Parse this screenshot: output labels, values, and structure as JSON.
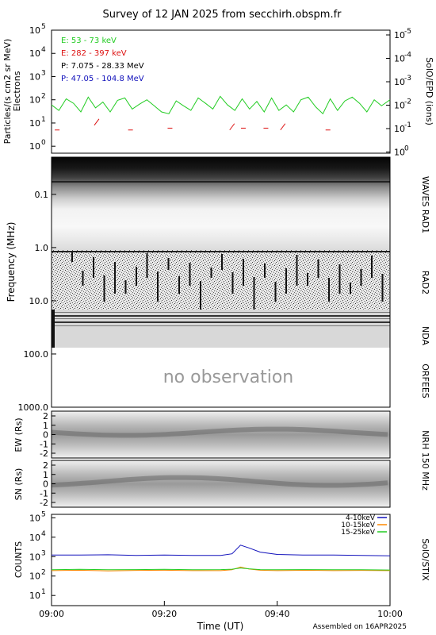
{
  "title": "Survey of 12 JAN 2025 from secchirh.obspm.fr",
  "footer": "Assembled on 16APR2025",
  "xaxis": {
    "label": "Time (UT)",
    "ticks": [
      "09:00",
      "09:20",
      "09:40",
      "10:00"
    ],
    "range": [
      "09:00",
      "10:00"
    ]
  },
  "colors": {
    "green": "#22cc22",
    "red": "#dd1111",
    "black": "#000000",
    "blue": "#1111bb",
    "orange": "#ff8800"
  },
  "panels": {
    "particles": {
      "ylabel": "Particles/(s cm2 sr MeV)",
      "ylabel2": "Electrons",
      "right_label": "SolO/EPD (ions)",
      "yticks_left": [
        "10",
        "10",
        "10",
        "10",
        "10",
        "10"
      ],
      "yexp_left": [
        "0",
        "1",
        "2",
        "3",
        "4",
        "5"
      ],
      "yticks_right": [
        "10",
        "10",
        "10",
        "10",
        "10",
        "10",
        "10"
      ],
      "yexp_right": [
        "-5",
        "-4",
        "-3",
        "-2",
        "-1",
        "0"
      ],
      "legend": [
        {
          "text": "E: 53 - 73 keV",
          "color": "#22cc22"
        },
        {
          "text": "E: 282 - 397 keV",
          "color": "#dd1111"
        },
        {
          "text": "P: 7.075 - 28.33 MeV",
          "color": "#000000"
        },
        {
          "text": "P: 47.05 - 104.8 MeV",
          "color": "#1111bb"
        }
      ]
    },
    "radio": {
      "ylabel": "Frequency (MHz)",
      "yticks": [
        "0.1",
        "1.0",
        "10.0",
        "100.0",
        "1000.0"
      ],
      "labels": [
        "WAVES RAD1",
        "RAD2",
        "NDA",
        "ORFEES"
      ],
      "no_obs": "no observation"
    },
    "nrh_ew": {
      "ylabel": "EW (Rs)",
      "yticks": [
        "2",
        "1",
        "0",
        "-1",
        "-2"
      ]
    },
    "nrh_sn": {
      "ylabel": "SN (Rs)",
      "yticks": [
        "2",
        "1",
        "0",
        "-1",
        "-2"
      ]
    },
    "nrh_label": "NRH 150 MHz",
    "stix": {
      "ylabel": "COUNTS",
      "right_label": "SolO/STIX",
      "yticks": [
        "10",
        "10",
        "10",
        "10",
        "10"
      ],
      "yexp": [
        "1",
        "2",
        "3",
        "4",
        "5"
      ]
    }
  },
  "chart_data": [
    {
      "type": "scatter",
      "title": "Survey of 12 JAN 2025 from secchirh.obspm.fr",
      "ylabel": "Particles/(s cm2 sr MeV) Electrons",
      "ylabel_right": "SolO/EPD (ions)",
      "xlabel": "Time (UT)",
      "xlim": [
        0,
        60
      ],
      "ylim": [
        1,
        100000
      ],
      "yscale": "log",
      "x_unit": "minutes after 09:00",
      "series": [
        {
          "name": "E: 53 - 73 keV",
          "color": "#22cc22",
          "x": [
            0,
            1.3,
            2.6,
            3.9,
            5.2,
            6.5,
            7.8,
            9.1,
            10.4,
            11.7,
            13,
            14.3,
            15.6,
            16.9,
            18.2,
            19.5,
            20.8,
            22.1,
            23.4,
            24.7,
            26,
            27.3,
            28.6,
            29.9,
            31.2,
            32.5,
            33.8,
            35.1,
            36.4,
            37.7,
            39,
            40.3,
            41.6,
            42.9,
            44.2,
            45.5,
            46.8,
            48.1,
            49.4,
            50.7,
            52,
            53.3,
            54.6,
            55.9,
            57.2,
            58.5,
            60
          ],
          "y": [
            60,
            35,
            110,
            70,
            30,
            130,
            45,
            80,
            30,
            95,
            120,
            40,
            65,
            100,
            55,
            30,
            25,
            90,
            55,
            35,
            120,
            70,
            40,
            140,
            60,
            35,
            110,
            40,
            85,
            30,
            120,
            35,
            60,
            30,
            100,
            130,
            50,
            25,
            110,
            35,
            90,
            130,
            70,
            30,
            100,
            55,
            100
          ]
        },
        {
          "name": "E: 282 - 397 keV",
          "color": "#dd1111",
          "x": [
            1,
            8,
            14,
            21,
            32,
            34,
            38,
            41,
            49
          ],
          "y": [
            5,
            8,
            5,
            6,
            5,
            6,
            6,
            5,
            5
          ]
        }
      ]
    },
    {
      "type": "heatmap",
      "ylabel": "Frequency (MHz)",
      "yscale": "log",
      "ylim": [
        0.02,
        1000
      ],
      "instruments": [
        "WAVES RAD1",
        "RAD2",
        "NDA",
        "ORFEES"
      ],
      "note": "no observation"
    },
    {
      "type": "line",
      "ylabel": "COUNTS",
      "ylabel_right": "SolO/STIX",
      "yscale": "log",
      "ylim": [
        10,
        100000
      ],
      "xlim": [
        0,
        60
      ],
      "x_unit": "minutes after 09:00",
      "series": [
        {
          "name": "4-10keV",
          "color": "#1111bb",
          "x": [
            0,
            5,
            10,
            15,
            20,
            25,
            30,
            32,
            33.5,
            35,
            37,
            40,
            45,
            50,
            55,
            60
          ],
          "y": [
            1200,
            1200,
            1250,
            1150,
            1200,
            1150,
            1150,
            1400,
            3900,
            2800,
            1700,
            1300,
            1200,
            1200,
            1150,
            1100
          ]
        },
        {
          "name": "10-15keV",
          "color": "#ff8800",
          "x": [
            0,
            5,
            10,
            15,
            20,
            25,
            30,
            32,
            33.5,
            35,
            37,
            40,
            45,
            50,
            55,
            60
          ],
          "y": [
            190,
            200,
            185,
            195,
            200,
            190,
            190,
            210,
            290,
            230,
            200,
            190,
            200,
            190,
            195,
            190
          ]
        },
        {
          "name": "15-25keV",
          "color": "#22cc22",
          "x": [
            0,
            5,
            10,
            15,
            20,
            25,
            30,
            32,
            33.5,
            35,
            37,
            40,
            45,
            50,
            55,
            60
          ],
          "y": [
            210,
            220,
            210,
            215,
            220,
            210,
            215,
            225,
            260,
            235,
            215,
            210,
            215,
            210,
            210,
            205
          ]
        }
      ]
    }
  ]
}
